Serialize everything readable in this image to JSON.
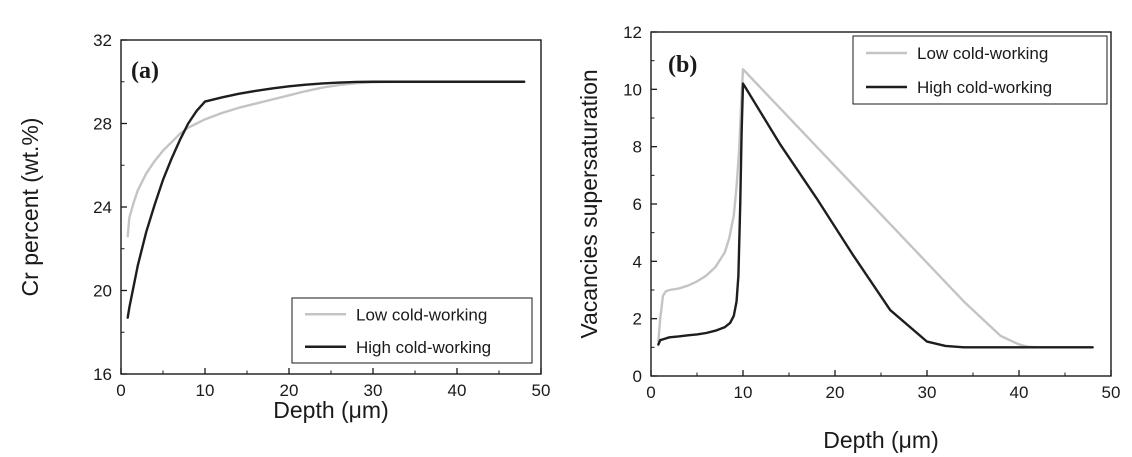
{
  "chart_data": [
    {
      "type": "line",
      "panel_label": "(a)",
      "xlabel": "Depth (μm)",
      "ylabel": "Cr percent (wt.%)",
      "xlim": [
        0,
        50
      ],
      "ylim": [
        16,
        32
      ],
      "xticks": [
        "0",
        "10",
        "20",
        "30",
        "40",
        "50"
      ],
      "yticks": [
        "16",
        "20",
        "24",
        "28",
        "32"
      ],
      "legend_position": "lower-right",
      "grid": false,
      "series": [
        {
          "name": "Low cold-working",
          "color": "#c4c4c4",
          "x": [
            0.8,
            1.0,
            1.5,
            2,
            3,
            4,
            5,
            6,
            7,
            8,
            9,
            10,
            12,
            14,
            16,
            18,
            20,
            22,
            24,
            26,
            28,
            30,
            32,
            34,
            38,
            42,
            48
          ],
          "y": [
            22.6,
            23.5,
            24.2,
            24.8,
            25.6,
            26.2,
            26.7,
            27.1,
            27.5,
            27.8,
            28.0,
            28.2,
            28.5,
            28.75,
            28.95,
            29.15,
            29.35,
            29.55,
            29.72,
            29.85,
            29.93,
            29.98,
            30.0,
            30.0,
            30.0,
            30.0,
            30.0
          ]
        },
        {
          "name": "High cold-working",
          "color": "#1e1e1e",
          "x": [
            0.8,
            1.0,
            1.5,
            2,
            3,
            4,
            5,
            6,
            7,
            8,
            9,
            10,
            12,
            14,
            16,
            18,
            20,
            22,
            24,
            26,
            28,
            30,
            34,
            38,
            42,
            48
          ],
          "y": [
            18.7,
            19.2,
            20.2,
            21.2,
            22.8,
            24.1,
            25.3,
            26.3,
            27.2,
            28.0,
            28.6,
            29.05,
            29.25,
            29.42,
            29.56,
            29.68,
            29.78,
            29.86,
            29.92,
            29.96,
            29.99,
            30.0,
            30.0,
            30.0,
            30.0,
            30.0
          ]
        }
      ]
    },
    {
      "type": "line",
      "panel_label": "(b)",
      "xlabel": "Depth (μm)",
      "ylabel": "Vacancies supersaturation",
      "xlim": [
        0,
        50
      ],
      "ylim": [
        0,
        12
      ],
      "xticks": [
        "0",
        "10",
        "20",
        "30",
        "40",
        "50"
      ],
      "yticks": [
        "0",
        "2",
        "4",
        "6",
        "8",
        "10",
        "12"
      ],
      "legend_position": "top-right",
      "grid": false,
      "series": [
        {
          "name": "Low cold-working",
          "color": "#c4c4c4",
          "x": [
            0.8,
            1.0,
            1.3,
            1.6,
            2,
            3,
            4,
            5,
            6,
            7,
            8,
            8.5,
            9,
            9.3,
            9.6,
            9.8,
            10,
            10.3,
            14,
            18,
            22,
            26,
            30,
            34,
            38,
            40,
            41,
            42,
            44,
            48
          ],
          "y": [
            1.2,
            2.0,
            2.8,
            2.95,
            3.0,
            3.05,
            3.15,
            3.3,
            3.5,
            3.8,
            4.3,
            4.8,
            5.6,
            6.6,
            8.0,
            9.5,
            10.7,
            10.6,
            9.35,
            8.0,
            6.65,
            5.3,
            3.95,
            2.6,
            1.4,
            1.1,
            1.02,
            1.0,
            1.0,
            1.0
          ]
        },
        {
          "name": "High cold-working",
          "color": "#1e1e1e",
          "x": [
            0.8,
            1.0,
            1.5,
            2,
            3,
            4,
            5,
            6,
            7,
            8,
            8.6,
            9.0,
            9.3,
            9.5,
            9.7,
            9.85,
            10,
            10.2,
            14,
            18,
            22,
            26,
            30,
            32,
            34,
            38,
            42,
            48
          ],
          "y": [
            1.1,
            1.25,
            1.3,
            1.35,
            1.38,
            1.42,
            1.45,
            1.5,
            1.58,
            1.7,
            1.85,
            2.1,
            2.6,
            3.5,
            6.0,
            8.5,
            10.2,
            10.1,
            8.1,
            6.2,
            4.2,
            2.3,
            1.2,
            1.05,
            1.0,
            1.0,
            1.0,
            1.0
          ]
        }
      ]
    }
  ]
}
